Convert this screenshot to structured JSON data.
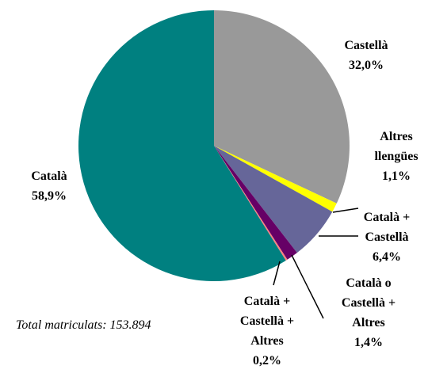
{
  "chart_data": {
    "type": "pie",
    "categories": [
      "Castellà",
      "Altres llengües",
      "Català + Castellà",
      "Català o Castellà + Altres",
      "Català + Castellà + Altres",
      "Català"
    ],
    "values": [
      32.0,
      1.1,
      6.4,
      1.4,
      0.2,
      58.9
    ],
    "value_labels": [
      "32,0%",
      "1,1%",
      "6,4%",
      "1,4%",
      "0,2%",
      "58,9%"
    ],
    "colors": [
      "#999999",
      "#ffff00",
      "#666699",
      "#660066",
      "#ff8080",
      "#008080"
    ],
    "note": "Total  matriculats: 153.894"
  }
}
